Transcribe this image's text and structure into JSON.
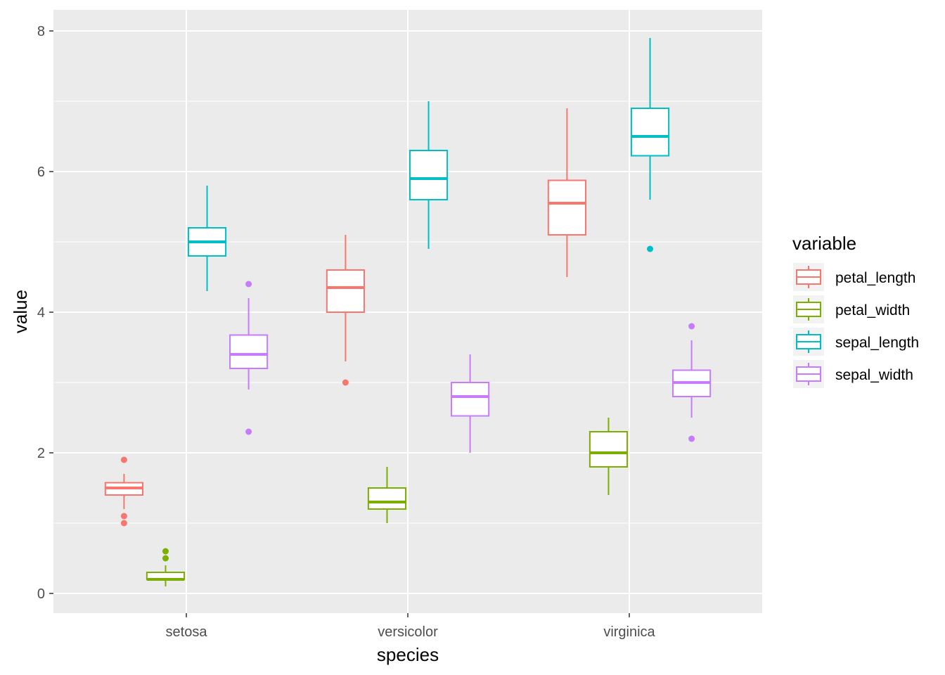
{
  "chart_data": {
    "type": "boxplot",
    "xlabel": "species",
    "ylabel": "value",
    "categories": [
      "setosa",
      "versicolor",
      "virginica"
    ],
    "ylim": [
      -0.28,
      8.3
    ],
    "yticks": [
      0,
      2,
      4,
      6,
      8
    ],
    "grid": true,
    "legend": {
      "title": "variable",
      "position": "right"
    },
    "series": [
      {
        "name": "petal_length",
        "color": "#F8766D",
        "boxes": [
          {
            "category": "setosa",
            "lower": 1.2,
            "q1": 1.4,
            "median": 1.5,
            "q3": 1.575,
            "upper": 1.7,
            "outliers": [
              1.9,
              1.1,
              1.0
            ]
          },
          {
            "category": "versicolor",
            "lower": 3.3,
            "q1": 4.0,
            "median": 4.35,
            "q3": 4.6,
            "upper": 5.1,
            "outliers": [
              3.0
            ]
          },
          {
            "category": "virginica",
            "lower": 4.5,
            "q1": 5.1,
            "median": 5.55,
            "q3": 5.875,
            "upper": 6.9,
            "outliers": []
          }
        ]
      },
      {
        "name": "petal_width",
        "color": "#7CAE00",
        "boxes": [
          {
            "category": "setosa",
            "lower": 0.1,
            "q1": 0.2,
            "median": 0.2,
            "q3": 0.3,
            "upper": 0.4,
            "outliers": [
              0.6,
              0.5
            ]
          },
          {
            "category": "versicolor",
            "lower": 1.0,
            "q1": 1.2,
            "median": 1.3,
            "q3": 1.5,
            "upper": 1.8,
            "outliers": []
          },
          {
            "category": "virginica",
            "lower": 1.4,
            "q1": 1.8,
            "median": 2.0,
            "q3": 2.3,
            "upper": 2.5,
            "outliers": []
          }
        ]
      },
      {
        "name": "sepal_length",
        "color": "#00BFC4",
        "boxes": [
          {
            "category": "setosa",
            "lower": 4.3,
            "q1": 4.8,
            "median": 5.0,
            "q3": 5.2,
            "upper": 5.8,
            "outliers": []
          },
          {
            "category": "versicolor",
            "lower": 4.9,
            "q1": 5.6,
            "median": 5.9,
            "q3": 6.3,
            "upper": 7.0,
            "outliers": []
          },
          {
            "category": "virginica",
            "lower": 5.6,
            "q1": 6.225,
            "median": 6.5,
            "q3": 6.9,
            "upper": 7.9,
            "outliers": [
              4.9
            ]
          }
        ]
      },
      {
        "name": "sepal_width",
        "color": "#C77CFF",
        "boxes": [
          {
            "category": "setosa",
            "lower": 2.9,
            "q1": 3.2,
            "median": 3.4,
            "q3": 3.675,
            "upper": 4.2,
            "outliers": [
              4.4,
              2.3
            ]
          },
          {
            "category": "versicolor",
            "lower": 2.0,
            "q1": 2.525,
            "median": 2.8,
            "q3": 3.0,
            "upper": 3.4,
            "outliers": []
          },
          {
            "category": "virginica",
            "lower": 2.5,
            "q1": 2.8,
            "median": 3.0,
            "q3": 3.175,
            "upper": 3.6,
            "outliers": [
              3.8,
              2.2
            ]
          }
        ]
      }
    ]
  }
}
